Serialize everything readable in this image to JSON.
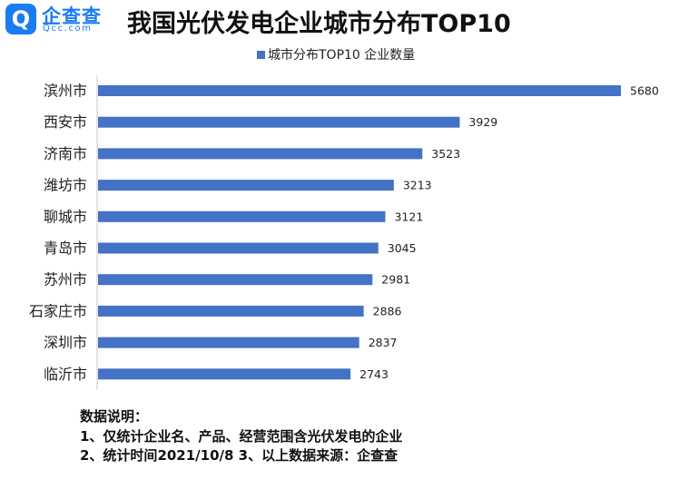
{
  "logo": {
    "mark": "Q",
    "name": "企查查",
    "url": "Qcc.com"
  },
  "title": "我国光伏发电企业城市分布TOP10",
  "colors": {
    "bar": "#4472c4",
    "brand": "#1a7cf3"
  },
  "chart_data": {
    "type": "bar",
    "orientation": "horizontal",
    "title": "我国光伏发电企业城市分布TOP10",
    "categories": [
      "滨州市",
      "西安市",
      "济南市",
      "潍坊市",
      "聊城市",
      "青岛市",
      "苏州市",
      "石家庄市",
      "深圳市",
      "临沂市"
    ],
    "series": [
      {
        "name": "城市分布TOP10 企业数量",
        "values": [
          5680,
          3929,
          3523,
          3213,
          3121,
          3045,
          2981,
          2886,
          2837,
          2743
        ]
      }
    ],
    "xlim": [
      0,
      5680
    ],
    "grid": false,
    "legend": "top"
  },
  "notes": {
    "heading": "数据说明：",
    "line1": "1、仅统计企业名、产品、经营范围含光伏发电的企业",
    "line2": "2、统计时间2021/10/8     3、以上数据来源：企查查"
  }
}
